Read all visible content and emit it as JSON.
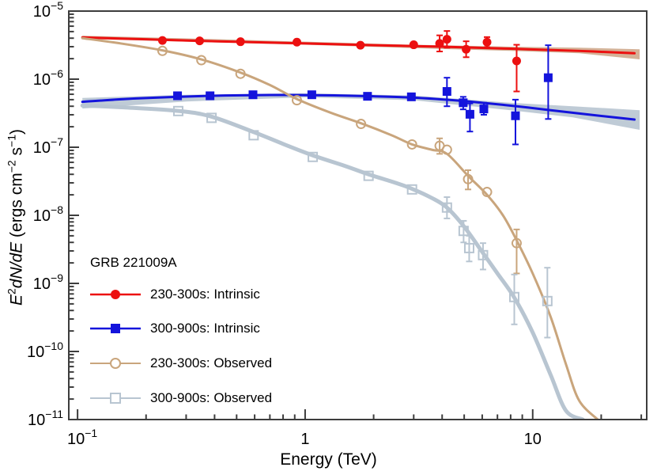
{
  "figure": {
    "xlabel": "Energy (TeV)",
    "ylabel_plain": "E2dN/dE (ergs cm-2 s-1)",
    "ylabel_segments": [
      {
        "t": "E",
        "italic": true
      },
      {
        "t": "2",
        "sup": true
      },
      {
        "t": "dN/d",
        "italic": true
      },
      {
        "t": "E",
        "italic": true
      },
      {
        "t": " (ergs cm"
      },
      {
        "t": "−2",
        "sup": true
      },
      {
        "t": " s"
      },
      {
        "t": "−1",
        "sup": true
      },
      {
        "t": ")"
      }
    ]
  },
  "chart_data": {
    "type": "scatter",
    "annotation": "GRB 221009A",
    "xlabel": "Energy (TeV)",
    "ylabel": "E^2 dN/dE (ergs cm^-2 s^-1)",
    "xscale": "log",
    "yscale": "log",
    "xlim": [
      0.0915,
      31.7
    ],
    "ylim": [
      1e-11,
      1e-05
    ],
    "grid": false,
    "frame_color": "#3d3d3d",
    "x_ticks": [
      {
        "value": 0.1,
        "mantissa": "10",
        "exponent": "−1"
      },
      {
        "value": 1,
        "mantissa": "1",
        "exponent": ""
      },
      {
        "value": 10,
        "mantissa": "10",
        "exponent": ""
      }
    ],
    "y_tick_exponents": [
      -5,
      -6,
      -7,
      -8,
      -9,
      -10,
      -11
    ],
    "legend_position": "lower-left",
    "series": [
      {
        "name": "230-300s: Intrinsic",
        "color": "#ec1010",
        "marker": "filled-circle",
        "band_color": "#cfa98c",
        "band": [
          [
            0.105,
            3.9e-06,
            4.35e-06
          ],
          [
            0.5,
            3.4e-06,
            3.8e-06
          ],
          [
            1,
            3.2e-06,
            3.55e-06
          ],
          [
            3,
            2.85e-06,
            3.2e-06
          ],
          [
            8,
            2.6e-06,
            3e-06
          ],
          [
            16,
            2.4e-06,
            2.9e-06
          ],
          [
            29.5,
            1.95e-06,
            2.75e-06
          ]
        ],
        "line": [
          [
            0.105,
            4.1e-06
          ],
          [
            0.2,
            3.85e-06
          ],
          [
            0.4,
            3.6e-06
          ],
          [
            1,
            3.35e-06
          ],
          [
            2,
            3.15e-06
          ],
          [
            4,
            3e-06
          ],
          [
            8,
            2.8e-06
          ],
          [
            16,
            2.6e-06
          ],
          [
            28,
            2.4e-06
          ]
        ],
        "points": [
          [
            0.236,
            3.7e-06
          ],
          [
            0.344,
            3.65e-06
          ],
          [
            0.52,
            3.55e-06
          ],
          [
            0.92,
            3.5e-06
          ],
          [
            1.75,
            3.15e-06
          ],
          [
            3.0,
            3.2e-06
          ],
          [
            3.9,
            3.35e-06,
            2.55e-06,
            4.4e-06
          ],
          [
            4.2,
            3.85e-06,
            2.9e-06,
            5.1e-06
          ],
          [
            5.1,
            2.75e-06,
            2.1e-06,
            3.6e-06
          ],
          [
            6.3,
            3.5e-06,
            2.95e-06,
            4.15e-06
          ],
          [
            8.5,
            1.85e-06,
            6.6e-07,
            3.2e-06
          ]
        ]
      },
      {
        "name": "300-900s: Intrinsic",
        "color": "#1414dc",
        "marker": "filled-square",
        "band_color": "#b8c5d1",
        "band": [
          [
            0.105,
            3.7e-07,
            5.3e-07
          ],
          [
            0.3,
            4.7e-07,
            5.9e-07
          ],
          [
            1,
            5.4e-07,
            6.2e-07
          ],
          [
            3,
            4.9e-07,
            5.75e-07
          ],
          [
            8,
            3.5e-07,
            4.5e-07
          ],
          [
            15,
            2.75e-07,
            4e-07
          ],
          [
            29.5,
            1.8e-07,
            3.5e-07
          ]
        ],
        "line": [
          [
            0.105,
            4.65e-07
          ],
          [
            0.18,
            5.2e-07
          ],
          [
            0.35,
            5.65e-07
          ],
          [
            0.7,
            5.85e-07
          ],
          [
            1.2,
            5.8e-07
          ],
          [
            2,
            5.6e-07
          ],
          [
            3,
            5.35e-07
          ],
          [
            4.5,
            4.9e-07
          ],
          [
            6,
            4.5e-07
          ],
          [
            8.5,
            4e-07
          ],
          [
            12,
            3.5e-07
          ],
          [
            18,
            3e-07
          ],
          [
            28,
            2.55e-07
          ]
        ],
        "points": [
          [
            0.275,
            5.7e-07
          ],
          [
            0.382,
            5.7e-07
          ],
          [
            0.59,
            5.9e-07
          ],
          [
            1.07,
            5.9e-07
          ],
          [
            1.88,
            5.6e-07
          ],
          [
            2.93,
            5.5e-07
          ],
          [
            4.2,
            6.6e-07,
            4e-07,
            1.05e-06
          ],
          [
            4.95,
            4.5e-07,
            3.6e-07,
            5.5e-07
          ],
          [
            5.3,
            3.05e-07,
            1.7e-07,
            4.4e-07
          ],
          [
            6.1,
            3.65e-07,
            3e-07,
            4.5e-07
          ],
          [
            8.4,
            2.9e-07,
            1.1e-07,
            5e-07
          ],
          [
            11.7,
            1.05e-06,
            2.6e-07,
            3.15e-06
          ]
        ]
      },
      {
        "name": "230-300s: Observed",
        "color": "#c9a57c",
        "marker": "open-circle",
        "line_width": 3,
        "line": [
          [
            0.105,
            4e-06
          ],
          [
            0.15,
            3.4e-06
          ],
          [
            0.236,
            2.65e-06
          ],
          [
            0.35,
            1.95e-06
          ],
          [
            0.52,
            1.25e-06
          ],
          [
            0.7,
            8.2e-07
          ],
          [
            0.92,
            5.1e-07
          ],
          [
            1.3,
            3.2e-07
          ],
          [
            1.76,
            2.25e-07
          ],
          [
            2.4,
            1.5e-07
          ],
          [
            2.95,
            1.1e-07
          ],
          [
            3.6,
            9.2e-08
          ],
          [
            4.2,
            8e-08
          ],
          [
            5.2,
            3.8e-08
          ],
          [
            6.3,
            2e-08
          ],
          [
            7.4,
            1e-08
          ],
          [
            8.5,
            4.3e-09
          ],
          [
            10,
            1.4e-09
          ],
          [
            12,
            3.2e-10
          ],
          [
            14,
            6.5e-11
          ],
          [
            16,
            1.9e-11
          ],
          [
            19.3,
            1e-11
          ]
        ],
        "points": [
          [
            0.236,
            2.6e-06
          ],
          [
            0.35,
            1.9e-06
          ],
          [
            0.52,
            1.2e-06
          ],
          [
            0.92,
            4.9e-07
          ],
          [
            1.76,
            2.2e-07
          ],
          [
            2.95,
            1.1e-07
          ],
          [
            3.9,
            1.05e-07,
            8e-08,
            1.35e-07
          ],
          [
            4.2,
            9.2e-08
          ],
          [
            5.2,
            3.4e-08,
            2.4e-08,
            4.6e-08
          ],
          [
            6.3,
            2.2e-08
          ],
          [
            8.5,
            3.9e-09,
            1.4e-09,
            6.2e-09
          ]
        ]
      },
      {
        "name": "300-900s: Observed",
        "color": "#b8c5d1",
        "marker": "open-square",
        "line_width": 5,
        "line": [
          [
            0.105,
            4.1e-07
          ],
          [
            0.16,
            3.85e-07
          ],
          [
            0.28,
            3.4e-07
          ],
          [
            0.39,
            2.8e-07
          ],
          [
            0.6,
            1.65e-07
          ],
          [
            0.8,
            1.12e-07
          ],
          [
            1.08,
            7.6e-08
          ],
          [
            1.5,
            5.3e-08
          ],
          [
            1.9,
            4e-08
          ],
          [
            2.5,
            3e-08
          ],
          [
            2.95,
            2.45e-08
          ],
          [
            3.6,
            1.8e-08
          ],
          [
            4.2,
            1.3e-08
          ],
          [
            5,
            6.8e-09
          ],
          [
            6,
            2.9e-09
          ],
          [
            7,
            1.4e-09
          ],
          [
            8.3,
            6.2e-10
          ],
          [
            10,
            1.9e-10
          ],
          [
            12,
            4.5e-11
          ],
          [
            14,
            1.35e-11
          ],
          [
            16.6,
            1e-11
          ]
        ],
        "points": [
          [
            0.277,
            3.4e-07
          ],
          [
            0.388,
            2.7e-07
          ],
          [
            0.594,
            1.5e-07
          ],
          [
            1.08,
            7.2e-08
          ],
          [
            1.9,
            3.8e-08
          ],
          [
            2.95,
            2.4e-08
          ],
          [
            4.2,
            1.3e-08,
            9e-09,
            1.85e-08
          ],
          [
            4.97,
            5.9e-09,
            4e-09,
            8.3e-09
          ],
          [
            5.26,
            3.3e-09,
            2.1e-09,
            5e-09
          ],
          [
            6.05,
            2.6e-09,
            1.6e-09,
            3.9e-09
          ],
          [
            8.3,
            6.3e-10,
            2.5e-10,
            1.35e-09
          ],
          [
            11.6,
            5.5e-10,
            1.6e-10,
            1.7e-09
          ]
        ]
      }
    ]
  }
}
